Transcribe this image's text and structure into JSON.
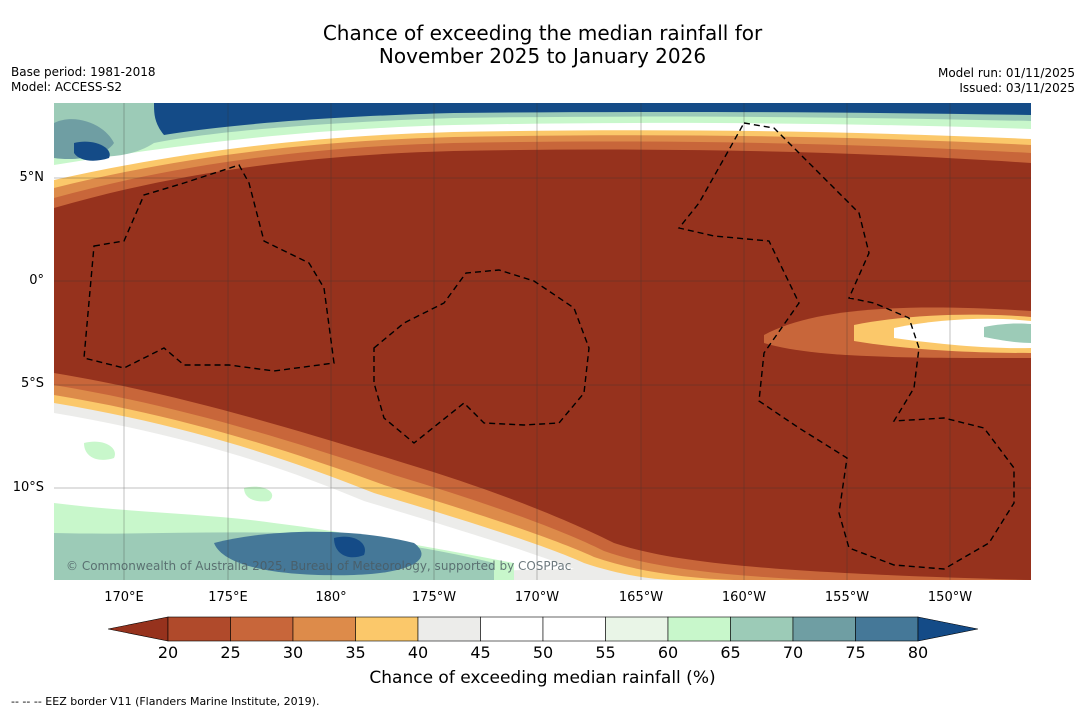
{
  "title": {
    "line1": "Chance of exceeding the median rainfall for",
    "line2": "November 2025 to January 2026"
  },
  "meta": {
    "base_period": "Base period: 1981-2018",
    "model": "Model: ACCESS-S2",
    "model_run": "Model run: 01/11/2025",
    "issued": "Issued: 03/11/2025"
  },
  "map": {
    "lat_labels": [
      "5°N",
      "0°",
      "5°S",
      "10°S"
    ],
    "lon_labels": [
      "170°E",
      "175°E",
      "180°",
      "175°W",
      "170°W",
      "165°W",
      "160°W",
      "155°W",
      "150°W"
    ],
    "attribution": "© Commonwealth of Australia 2025, Bureau of Meteorology, supported by COSPPac"
  },
  "colorbar": {
    "title": "Chance of exceeding median rainfall (%)",
    "ticks": [
      "20",
      "25",
      "30",
      "35",
      "40",
      "45",
      "50",
      "55",
      "60",
      "65",
      "70",
      "75",
      "80"
    ],
    "colors": [
      "#96321d",
      "#b04a2b",
      "#c8663a",
      "#dd8b4a",
      "#fbc86a",
      "#ececea",
      "#ffffff",
      "#ffffff",
      "#e9f5e7",
      "#c8f7cb",
      "#9ccbb7",
      "#6f9ea3",
      "#457898",
      "#144b87"
    ]
  },
  "footnote": "-- -- -- EEZ border V11 (Flanders Marine Institute, 2019)."
}
